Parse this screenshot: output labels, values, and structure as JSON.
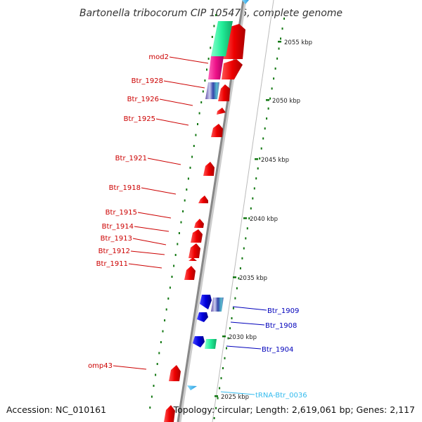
{
  "title": "Bartonella tribocorum CIP 105476, complete genome",
  "footer": {
    "accession": "Accession: NC_010161",
    "summary": "Topology: circular; Length: 2,619,061 bp; Genes: 2,117"
  },
  "colors": {
    "forward_cds": "#ee0000",
    "reverse_cds": "#0000dd",
    "trna": "#33bbee",
    "fwd_label": "#cc0000",
    "rev_label": "#0000bb",
    "scale_tick": "#117711",
    "backbone": "#888888"
  },
  "scale_ticks": [
    "2055 kbp",
    "2050 kbp",
    "2045 kbp",
    "2040 kbp",
    "2035 kbp",
    "2030 kbp",
    "2025 kbp"
  ],
  "forward_labels": [
    "mod2",
    "Btr_1928",
    "Btr_1926",
    "Btr_1925",
    "Btr_1921",
    "Btr_1918",
    "Btr_1915",
    "Btr_1914",
    "Btr_1913",
    "Btr_1912",
    "Btr_1911",
    "omp43"
  ],
  "reverse_labels": [
    "Btr_1909",
    "Btr_1908",
    "Btr_1904",
    "tRNA-Btr_0036"
  ]
}
